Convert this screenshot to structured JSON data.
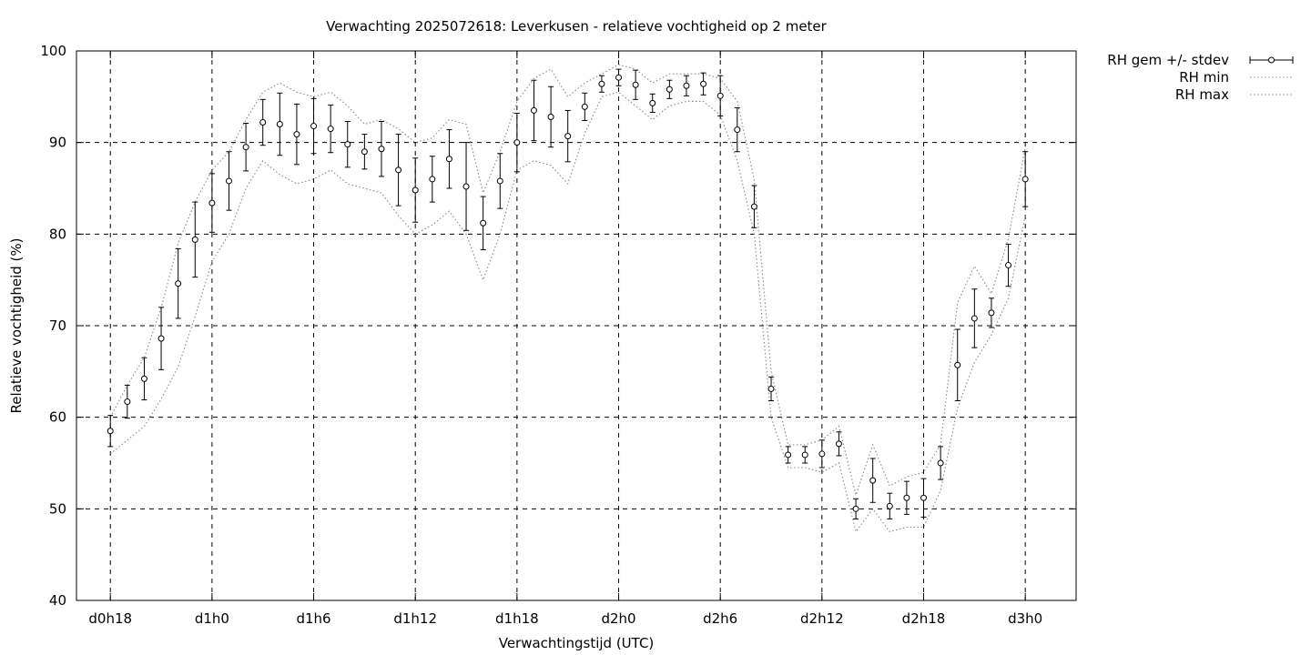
{
  "chart_data": {
    "type": "line",
    "title": "Verwachting 2025072618: Leverkusen - relatieve vochtigheid op 2 meter",
    "xlabel": "Verwachtingstijd (UTC)",
    "ylabel": "Relatieve vochtigheid (%)",
    "ylim": [
      40,
      100
    ],
    "yticks": [
      40,
      50,
      60,
      70,
      80,
      90,
      100
    ],
    "xlim": [
      16,
      75
    ],
    "xticks": [
      {
        "value": 18,
        "label": "d0h18"
      },
      {
        "value": 24,
        "label": "d1h0"
      },
      {
        "value": 30,
        "label": "d1h6"
      },
      {
        "value": 36,
        "label": "d1h12"
      },
      {
        "value": 42,
        "label": "d1h18"
      },
      {
        "value": 48,
        "label": "d2h0"
      },
      {
        "value": 54,
        "label": "d2h6"
      },
      {
        "value": 60,
        "label": "d2h12"
      },
      {
        "value": 66,
        "label": "d2h18"
      },
      {
        "value": 72,
        "label": "d3h0"
      }
    ],
    "grid": true,
    "legend_position": "outside-top-right",
    "x": [
      18,
      19,
      20,
      21,
      22,
      23,
      24,
      25,
      26,
      27,
      28,
      29,
      30,
      31,
      32,
      33,
      34,
      35,
      36,
      37,
      38,
      39,
      40,
      41,
      42,
      43,
      44,
      45,
      46,
      47,
      48,
      49,
      50,
      51,
      52,
      53,
      54,
      55,
      56,
      57,
      58,
      59,
      60,
      61,
      62,
      63,
      64,
      65,
      66,
      67,
      68,
      69,
      70,
      71,
      72
    ],
    "series": [
      {
        "name": "RH gem +/- stdev",
        "style": "errorbars",
        "mean": [
          58.5,
          61.7,
          64.2,
          68.6,
          74.6,
          79.4,
          83.4,
          85.8,
          89.5,
          92.2,
          92.0,
          90.9,
          91.8,
          91.5,
          89.8,
          89.0,
          89.3,
          87.0,
          84.8,
          86.0,
          88.2,
          85.2,
          81.2,
          85.8,
          90.0,
          93.5,
          92.8,
          90.7,
          93.9,
          96.4,
          97.1,
          96.3,
          94.3,
          95.8,
          96.2,
          96.4,
          95.1,
          91.4,
          83.0,
          63.1,
          55.9,
          55.9,
          56.0,
          57.1,
          50.0,
          53.1,
          50.3,
          51.2,
          51.2,
          55.0,
          65.7,
          70.8,
          71.4,
          76.6,
          86.0
        ],
        "stdev": [
          1.7,
          1.8,
          2.3,
          3.4,
          3.8,
          4.1,
          3.2,
          3.2,
          2.6,
          2.5,
          3.4,
          3.3,
          3.0,
          2.6,
          2.5,
          1.9,
          3.0,
          3.9,
          3.5,
          2.5,
          3.2,
          4.8,
          2.9,
          3.0,
          3.2,
          3.3,
          3.3,
          2.8,
          1.5,
          0.9,
          0.9,
          1.6,
          1.0,
          1.0,
          1.1,
          1.2,
          2.2,
          2.4,
          2.3,
          1.3,
          0.9,
          0.9,
          1.5,
          1.3,
          1.1,
          2.4,
          1.4,
          1.8,
          2.1,
          1.8,
          3.9,
          3.2,
          1.6,
          2.3,
          3.0
        ]
      },
      {
        "name": "RH min",
        "style": "dotted",
        "values": [
          56.0,
          57.5,
          59.0,
          62.0,
          65.5,
          71.0,
          77.0,
          80.0,
          85.0,
          88.0,
          86.5,
          85.5,
          86.0,
          87.0,
          85.5,
          85.0,
          84.5,
          82.0,
          80.0,
          81.0,
          82.5,
          80.0,
          75.0,
          80.0,
          87.0,
          88.0,
          87.5,
          85.5,
          91.0,
          95.0,
          95.5,
          94.0,
          92.5,
          94.0,
          94.5,
          94.5,
          93.0,
          88.0,
          80.0,
          60.0,
          54.5,
          54.5,
          54.0,
          55.0,
          47.5,
          50.0,
          47.5,
          48.0,
          48.0,
          52.0,
          61.0,
          66.0,
          69.0,
          73.0,
          82.0
        ]
      },
      {
        "name": "RH max",
        "style": "dotted",
        "values": [
          60.0,
          63.5,
          66.5,
          72.0,
          79.0,
          83.5,
          87.0,
          89.0,
          92.5,
          95.5,
          96.5,
          95.5,
          95.0,
          95.5,
          94.0,
          92.0,
          92.5,
          91.5,
          90.0,
          90.5,
          92.5,
          92.0,
          84.5,
          89.0,
          94.5,
          97.0,
          98.0,
          95.0,
          96.5,
          97.5,
          98.5,
          98.0,
          96.5,
          97.5,
          97.5,
          97.5,
          97.0,
          94.5,
          86.0,
          65.0,
          57.0,
          57.0,
          57.5,
          59.0,
          51.5,
          57.0,
          52.5,
          53.5,
          54.0,
          57.0,
          72.5,
          76.5,
          73.5,
          79.5,
          89.5
        ]
      }
    ]
  }
}
